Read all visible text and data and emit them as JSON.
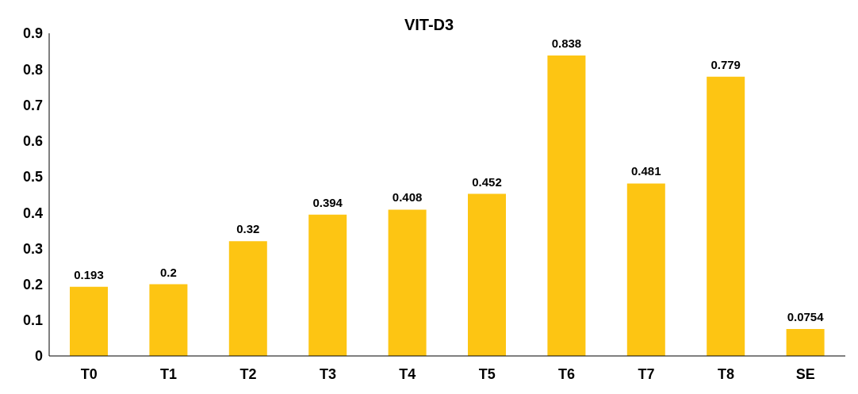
{
  "chart_data": {
    "type": "bar",
    "title": "VIT-D3",
    "categories": [
      "T0",
      "T1",
      "T2",
      "T3",
      "T4",
      "T5",
      "T6",
      "T7",
      "T8",
      "SE"
    ],
    "values": [
      0.193,
      0.2,
      0.32,
      0.394,
      0.408,
      0.452,
      0.838,
      0.481,
      0.779,
      0.0754
    ],
    "color": "#fdc513",
    "ylim": [
      0,
      0.9
    ],
    "yticks": [
      0,
      0.1,
      0.2,
      0.3,
      0.4,
      0.5,
      0.6,
      0.7,
      0.8,
      0.9
    ],
    "grid": false,
    "legend": false,
    "data_labels": true
  }
}
